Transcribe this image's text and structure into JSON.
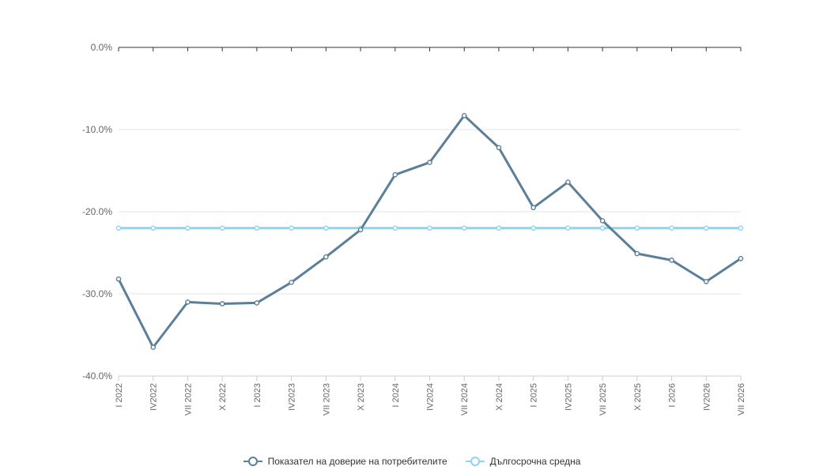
{
  "chart_data": {
    "type": "line",
    "categories": [
      "I 2022",
      "IV2022",
      "VII 2022",
      "X 2022",
      "I 2023",
      "IV2023",
      "VII 2023",
      "X 2023",
      "I 2024",
      "IV2024",
      "VII 2024",
      "X 2024",
      "I 2025",
      "IV2025",
      "VII 2025",
      "X 2025",
      "I 2026",
      "IV2026",
      "VII 2026"
    ],
    "series": [
      {
        "name": "Показател на доверие на потребителите",
        "color": "#5b7f99",
        "values": [
          -28.2,
          -36.5,
          -31.0,
          -31.2,
          -31.1,
          -28.6,
          -25.5,
          -22.2,
          -15.5,
          -14.0,
          -8.3,
          -12.2,
          -19.5,
          -16.4,
          -21.1,
          -25.1,
          -25.9,
          -28.5,
          -25.7
        ]
      },
      {
        "name": "Дългосрочна средна",
        "color": "#8fd3f2",
        "values": [
          -22.0,
          -22.0,
          -22.0,
          -22.0,
          -22.0,
          -22.0,
          -22.0,
          -22.0,
          -22.0,
          -22.0,
          -22.0,
          -22.0,
          -22.0,
          -22.0,
          -22.0,
          -22.0,
          -22.0,
          -22.0,
          -22.0
        ]
      }
    ],
    "ylim": [
      -40,
      0
    ],
    "yticks": [
      0,
      -10,
      -20,
      -30,
      -40
    ],
    "ytick_labels": [
      "0.0%",
      "-10.0%",
      "-20.0%",
      "-30.0%",
      "-40.0%"
    ],
    "grid": true,
    "legend": "bottom-center"
  }
}
